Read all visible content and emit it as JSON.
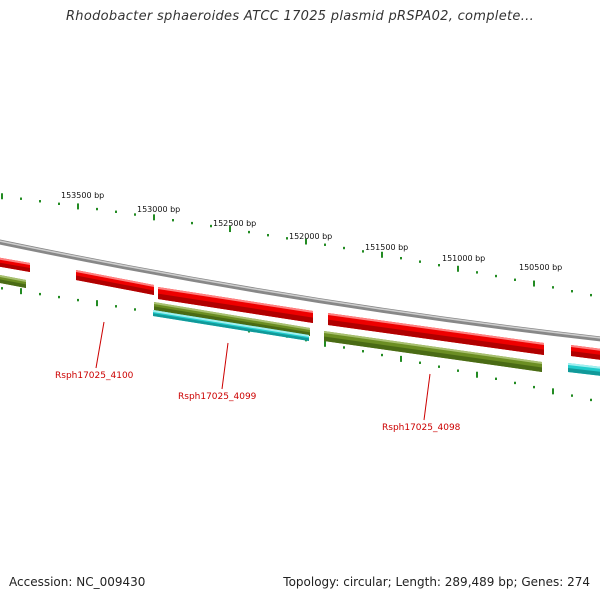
{
  "title": "Rhodobacter sphaeroides ATCC 17025 plasmid pRSPA02, complete...",
  "accession_label": "Accession: NC_009430",
  "meta_label": "Topology: circular; Length: 289,489 bp; Genes: 274",
  "scale_ticks": [
    {
      "label": "153500 bp"
    },
    {
      "label": "153000 bp"
    },
    {
      "label": "152500 bp"
    },
    {
      "label": "152000 bp"
    },
    {
      "label": "151500 bp"
    },
    {
      "label": "151000 bp"
    },
    {
      "label": "150500 bp"
    }
  ],
  "gene_labels": [
    {
      "label": "Rsph17025_4100"
    },
    {
      "label": "Rsph17025_4099"
    },
    {
      "label": "Rsph17025_4098"
    }
  ],
  "colors": {
    "forward_gene": "#ee0000",
    "reverse_gene": "#6b8e23",
    "rna_gene": "#22cccc",
    "backbone": "#888888",
    "tick": "#228b22",
    "gene_label": "#cc0000"
  }
}
